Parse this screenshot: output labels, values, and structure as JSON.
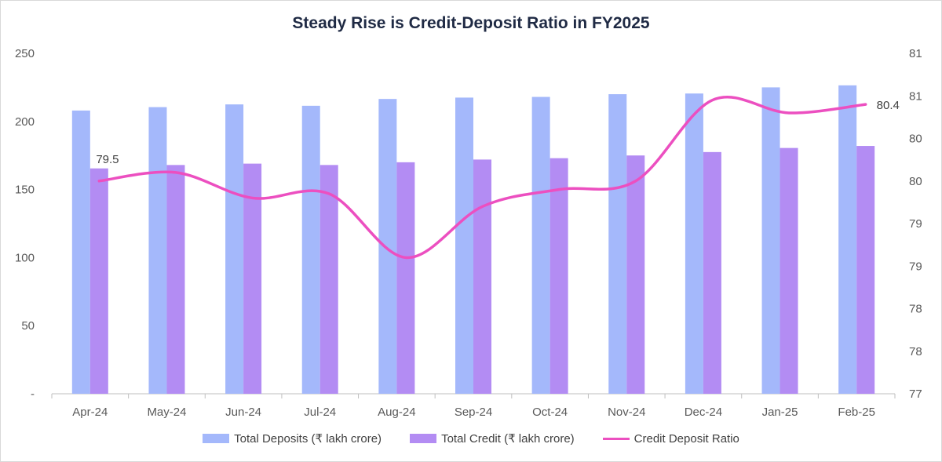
{
  "chart_data": {
    "type": "bar",
    "title": "Steady Rise is Credit-Deposit Ratio in FY2025",
    "categories": [
      "Apr-24",
      "May-24",
      "Jun-24",
      "Jul-24",
      "Aug-24",
      "Sep-24",
      "Oct-24",
      "Nov-24",
      "Dec-24",
      "Jan-25",
      "Feb-25"
    ],
    "series": [
      {
        "name": "Total Deposits (₹ lakh crore)",
        "kind": "bar",
        "axis": "left",
        "color": "#a4b8fb",
        "values": [
          208,
          210.5,
          212.5,
          211.5,
          216.5,
          217.5,
          218,
          220,
          220.5,
          225,
          226.5
        ]
      },
      {
        "name": "Total Credit (₹ lakh crore)",
        "kind": "bar",
        "axis": "left",
        "color": "#b38cf3",
        "values": [
          165.5,
          168,
          169,
          168,
          170,
          172,
          173,
          175,
          177.5,
          180.5,
          182
        ]
      },
      {
        "name": "Credit Deposit Ratio",
        "kind": "line",
        "axis": "right",
        "color": "#ec4fc0",
        "values": [
          79.5,
          79.6,
          79.3,
          79.35,
          78.6,
          79.2,
          79.4,
          79.5,
          80.45,
          80.3,
          80.4
        ]
      }
    ],
    "data_labels": [
      {
        "series": 2,
        "index": 0,
        "text": "79.5"
      },
      {
        "series": 2,
        "index": 10,
        "text": "80.4"
      }
    ],
    "y_left": {
      "ylim": [
        0,
        250
      ],
      "ticks": [
        "-",
        "50",
        "100",
        "150",
        "200",
        "250"
      ]
    },
    "y_right": {
      "ylim": [
        77,
        81
      ],
      "ticks": [
        "77",
        "78",
        "78",
        "79",
        "79",
        "80",
        "80",
        "81",
        "81"
      ]
    },
    "grid": false,
    "legend": "bottom"
  }
}
